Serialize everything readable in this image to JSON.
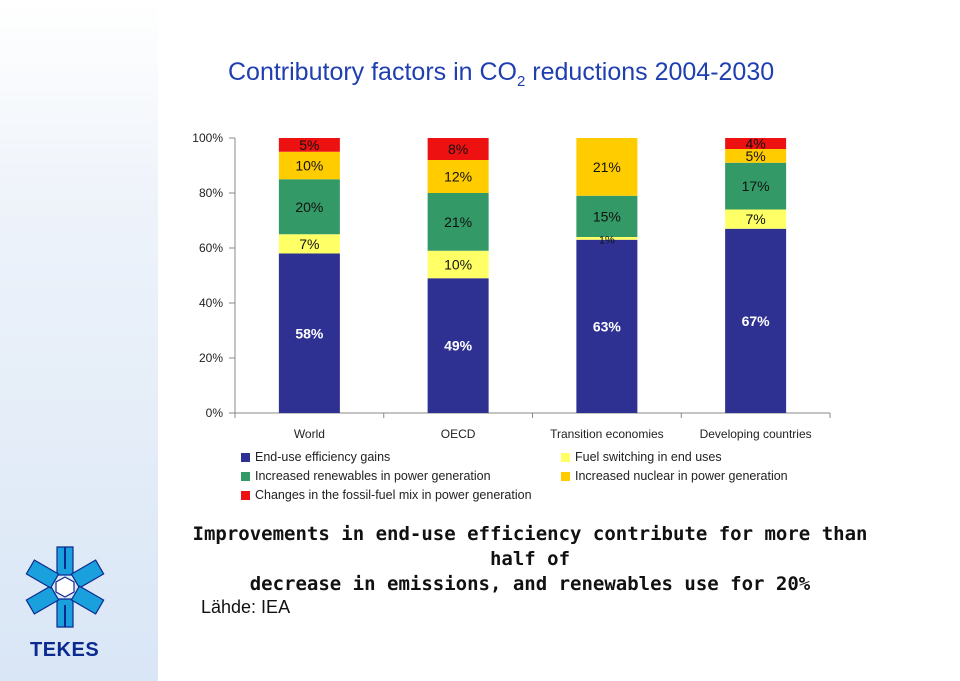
{
  "title_main": "Contributory factors in CO",
  "title_sub": "2",
  "title_rest": " reductions 2004-2030",
  "chart_data": {
    "type": "bar",
    "stacked": true,
    "categories": [
      "World",
      "OECD",
      "Transition economies",
      "Developing countries"
    ],
    "yticks": [
      "0%",
      "20%",
      "40%",
      "60%",
      "80%",
      "100%"
    ],
    "ylim": [
      0,
      100
    ],
    "series": [
      {
        "name": "End-use efficiency gains",
        "color": "#2e3192",
        "values": [
          58,
          49,
          63,
          67
        ],
        "labels": [
          "58%",
          "49%",
          "63%",
          "67%"
        ]
      },
      {
        "name": "Fuel switching in end uses",
        "color": "#ffff66",
        "values": [
          7,
          10,
          1,
          7
        ],
        "labels": [
          "7%",
          "10%",
          "1%",
          "7%"
        ]
      },
      {
        "name": "Increased renewables in power generation",
        "color": "#339966",
        "values": [
          20,
          21,
          15,
          17
        ],
        "labels": [
          "20%",
          "21%",
          "15%",
          "17%"
        ]
      },
      {
        "name": "Increased nuclear in power generation",
        "color": "#ffcc00",
        "values": [
          10,
          12,
          21,
          5
        ],
        "labels": [
          "10%",
          "12%",
          "21%",
          "5%"
        ]
      },
      {
        "name": "Changes in the fossil-fuel mix in power generation",
        "color": "#ee1111",
        "values": [
          5,
          8,
          0,
          4
        ],
        "labels": [
          "5%",
          "8%",
          "",
          "4%"
        ]
      }
    ],
    "legend": "bottom"
  },
  "caption": {
    "line1": "Improvements in end-use efficiency contribute for more than half of",
    "line2": "decrease in emissions, and renewables use for 20%"
  },
  "source": "Lähde: IEA",
  "brand": "TEKES",
  "logo_icon": "tekes-snowflake-icon"
}
